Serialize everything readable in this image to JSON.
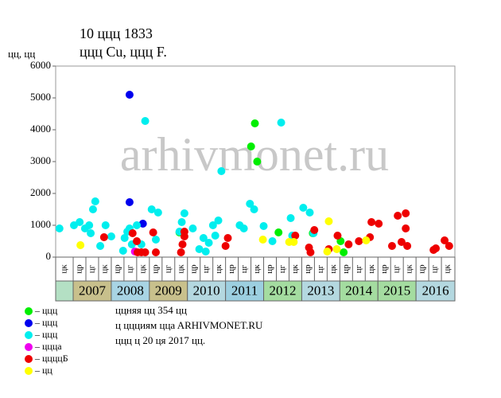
{
  "chart_data": {
    "type": "scatter",
    "title": "10 ццц 1833",
    "subtitle": "ццц Cu, ццц F.",
    "y_label": "цц, цц",
    "watermark": "arhivmonet.ru",
    "xlim": [
      2006.54,
      2017.02
    ],
    "ylim": [
      0,
      6000
    ],
    "yticks": [
      0,
      1000,
      2000,
      3000,
      4000,
      5000,
      6000
    ],
    "years": [
      "2007",
      "2008",
      "2009",
      "2010",
      "2011",
      "2012",
      "2013",
      "2014",
      "2015",
      "2016"
    ],
    "year_colors": [
      "#c8c08c",
      "#a8d4e4",
      "#c8c08c",
      "#b4d8e0",
      "#9ccfe0",
      "#a4dca0",
      "#b4d8e0",
      "#a4dca0",
      "#a4dca0",
      "#b4d8e0"
    ],
    "sub_labels": [
      "цк",
      "цр",
      "цг",
      "цк",
      "цр",
      "цг",
      "цк",
      "цр",
      "цг",
      "цк",
      "цр",
      "цг",
      "цк",
      "цр",
      "цг",
      "цк",
      "цр",
      "цг",
      "цк",
      "цр",
      "цг",
      "цк",
      "цр",
      "цг",
      "цк",
      "цр",
      "цг",
      "цк",
      "цр",
      "цг",
      "цк"
    ],
    "series": [
      {
        "name": "– ццц",
        "color": "#00ee00",
        "x": [
          2009.79,
          2011.67,
          2011.77,
          2011.83,
          2012.39,
          2013.29,
          2014.02,
          2014.1
        ],
        "values": [
          775,
          3475,
          4200,
          3000,
          775,
          750,
          500,
          150
        ]
      },
      {
        "name": "– ццц",
        "color": "#0000ee",
        "x": [
          2008.48,
          2008.48,
          2008.83
        ],
        "values": [
          5100,
          1725,
          1050
        ]
      },
      {
        "name": "– ццц",
        "color": "#00eeee",
        "x": [
          2006.64,
          2007.02,
          2007.17,
          2007.31,
          2007.42,
          2007.46,
          2007.52,
          2007.58,
          2007.71,
          2007.85,
          2008.0,
          2008.31,
          2008.35,
          2008.42,
          2008.48,
          2008.54,
          2008.67,
          2008.79,
          2008.89,
          2009.06,
          2009.17,
          2009.23,
          2009.79,
          2009.85,
          2009.92,
          2010.14,
          2010.31,
          2010.42,
          2010.48,
          2010.56,
          2010.67,
          2010.73,
          2010.81,
          2010.89,
          2011.37,
          2011.48,
          2011.64,
          2011.75,
          2012.0,
          2012.23,
          2012.46,
          2012.71,
          2012.75,
          2013.04,
          2013.21,
          2013.31
        ],
        "values": [
          900,
          1000,
          1100,
          900,
          1000,
          750,
          1500,
          1750,
          350,
          1000,
          650,
          200,
          600,
          800,
          900,
          400,
          1000,
          400,
          4275,
          1500,
          550,
          1400,
          800,
          1100,
          1375,
          900,
          250,
          600,
          175,
          450,
          1000,
          675,
          1150,
          2700,
          1000,
          900,
          1675,
          1500,
          975,
          500,
          4225,
          1225,
          675,
          1550,
          1400,
          750
        ]
      },
      {
        "name": "– ццца",
        "color": "#ee00ee",
        "x": [
          2008.62
        ],
        "values": [
          175
        ]
      },
      {
        "name": "– ццццБ",
        "color": "#ee0000",
        "x": [
          2007.81,
          2008.56,
          2008.67,
          2008.69,
          2008.79,
          2008.89,
          2009.1,
          2009.17,
          2009.83,
          2009.87,
          2009.92,
          2009.92,
          2011.0,
          2011.06,
          2012.83,
          2013.19,
          2013.23,
          2013.33,
          2013.71,
          2013.94,
          2014.23,
          2014.5,
          2014.79,
          2014.83,
          2015.02,
          2015.37,
          2015.52,
          2015.62,
          2015.73,
          2015.73,
          2015.77,
          2016.46,
          2016.52,
          2016.75,
          2016.87
        ],
        "values": [
          625,
          750,
          500,
          150,
          150,
          150,
          775,
          150,
          150,
          400,
          800,
          650,
          350,
          600,
          675,
          300,
          150,
          850,
          250,
          675,
          400,
          500,
          625,
          1100,
          1050,
          350,
          1300,
          475,
          900,
          1375,
          350,
          225,
          275,
          525,
          350
        ]
      },
      {
        "name": "– цц",
        "color": "#ffff00",
        "x": [
          2007.19,
          2011.98,
          2012.67,
          2012.79,
          2013.71,
          2013.67,
          2013.92,
          2014.69
        ],
        "values": [
          375,
          550,
          475,
          475,
          1125,
          175,
          250,
          525
        ]
      }
    ],
    "notes": [
      "ццняя цц 354 цц",
      "ц ццциям ццa ARHIVMONET.RU",
      "ццц ц 20 ця 2017 цц."
    ]
  }
}
